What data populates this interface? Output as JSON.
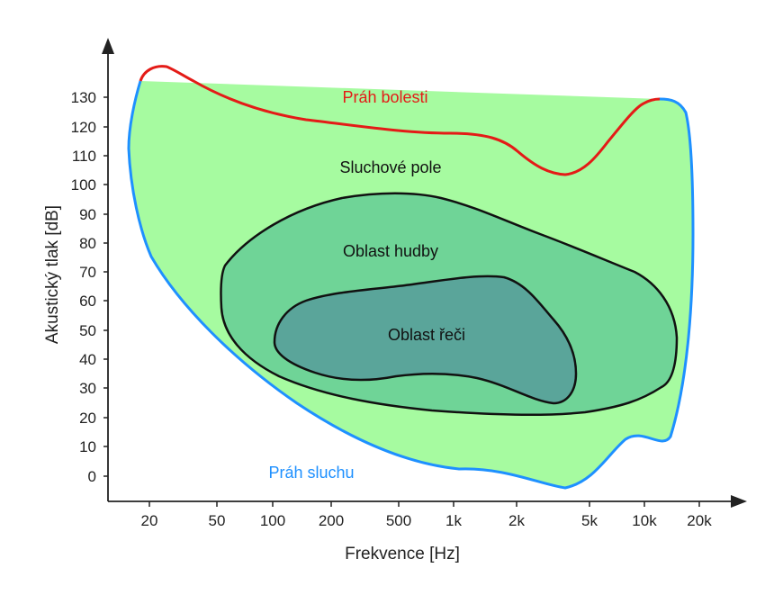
{
  "chart_data": {
    "type": "area",
    "xlabel": "Frekvence [Hz]",
    "ylabel": "Akustický tlak [dB]",
    "x_scale": "log",
    "x_ticks": [
      "20",
      "50",
      "100",
      "200",
      "500",
      "1k",
      "2k",
      "5k",
      "10k",
      "20k"
    ],
    "y_ticks": [
      "0",
      "10",
      "20",
      "30",
      "40",
      "50",
      "60",
      "70",
      "80",
      "90",
      "100",
      "110",
      "120",
      "130"
    ],
    "ylim": [
      -5,
      140
    ],
    "regions": {
      "pain_threshold": "Práh bolesti",
      "hearing_field": "Sluchové pole",
      "music_area": "Oblast hudby",
      "speech_area": "Oblast řeči",
      "hearing_threshold": "Práh sluchu"
    }
  },
  "colors": {
    "pain_threshold_line": "#e41b17",
    "hearing_threshold_line": "#1e90ff",
    "hearing_field_fill": "#a6fba0",
    "music_area_fill": "#6fd497",
    "speech_area_fill": "#5aa59a",
    "outline": "#111111",
    "axis": "#222222"
  }
}
